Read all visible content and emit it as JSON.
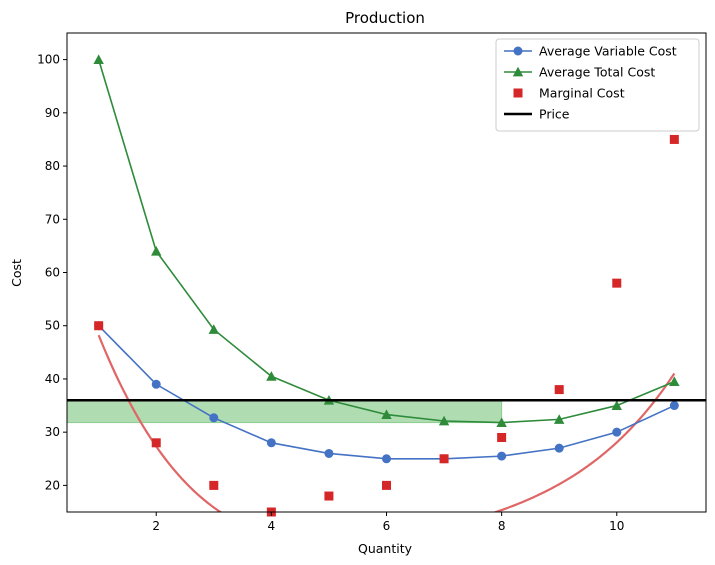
{
  "chart_data": {
    "type": "line",
    "title": "Production",
    "xlabel": "Quantity",
    "ylabel": "Cost",
    "xlim": [
      0.45,
      11.55
    ],
    "ylim": [
      15,
      105
    ],
    "xticks": [
      2,
      4,
      6,
      8,
      10
    ],
    "yticks": [
      20,
      30,
      40,
      50,
      60,
      70,
      80,
      90,
      100
    ],
    "grid": false,
    "legend_position": "top-right",
    "x": [
      1,
      2,
      3,
      4,
      5,
      6,
      7,
      8,
      9,
      10,
      11
    ],
    "series": [
      {
        "name": "Average Variable Cost",
        "kind": "line-marker",
        "marker": "circle",
        "color": "#4472c4",
        "values": [
          50,
          39,
          32.7,
          28,
          26,
          25,
          25,
          25.5,
          27,
          30,
          35
        ]
      },
      {
        "name": "Average Total Cost",
        "kind": "line-marker",
        "marker": "triangle",
        "color": "#2e8b3a",
        "values": [
          100,
          64,
          49.3,
          40.5,
          36,
          33.3,
          32.1,
          31.8,
          32.4,
          35,
          39.5
        ]
      },
      {
        "name": "Marginal Cost",
        "kind": "marker",
        "marker": "square",
        "color": "#d62728",
        "values": [
          50,
          28,
          20,
          15,
          18,
          20,
          25,
          29,
          38,
          58,
          85
        ]
      },
      {
        "name": "Price",
        "kind": "hline",
        "color": "#000000",
        "value": 36
      }
    ],
    "marginal_cost_fit": {
      "color": "#e06666",
      "coefficients": [
        82.4545,
        -42.3916,
        8.9674,
        -0.8392,
        0.0312
      ]
    },
    "shaded_region": {
      "x_range": [
        0.45,
        8
      ],
      "y_range": [
        31.8,
        36
      ],
      "color": "#7bc47f"
    }
  }
}
